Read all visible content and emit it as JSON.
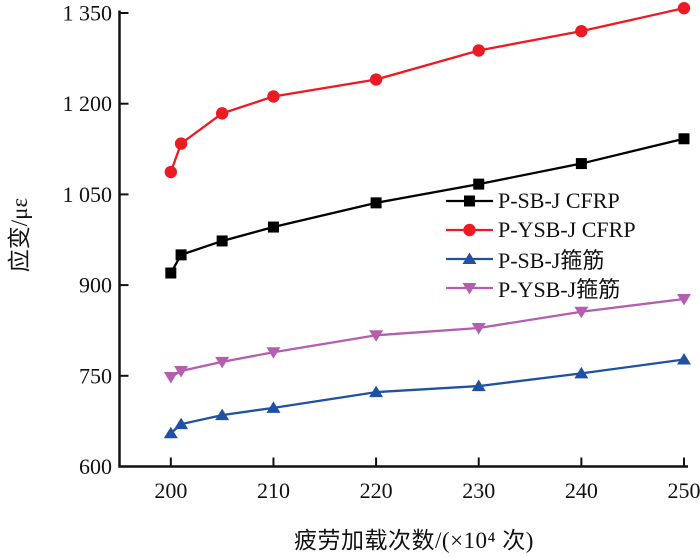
{
  "chart_data": {
    "type": "line",
    "title": "",
    "xlabel": "疲劳加载次数/(×10⁴ 次)",
    "ylabel": "应变/με",
    "x": [
      200,
      201,
      205,
      210,
      220,
      230,
      240,
      250
    ],
    "xlim": [
      195,
      250
    ],
    "ylim": [
      600,
      1350
    ],
    "grid": false,
    "legend_position": "middle-right",
    "xticks": [
      {
        "value": 200,
        "label": "200"
      },
      {
        "value": 210,
        "label": "210"
      },
      {
        "value": 220,
        "label": "220"
      },
      {
        "value": 230,
        "label": "230"
      },
      {
        "value": 240,
        "label": "240"
      },
      {
        "value": 250,
        "label": "250"
      }
    ],
    "yticks": [
      {
        "value": 600,
        "label": "600"
      },
      {
        "value": 750,
        "label": "750"
      },
      {
        "value": 900,
        "label": "900"
      },
      {
        "value": 1050,
        "label": "1 050"
      },
      {
        "value": 1200,
        "label": "1 200"
      },
      {
        "value": 1350,
        "label": "1 350"
      }
    ],
    "series": [
      {
        "name": "P-SB-J CFRP",
        "color": "#000000",
        "marker": "square",
        "values": [
          920,
          950,
          973,
          996,
          1036,
          1067,
          1101,
          1142
        ]
      },
      {
        "name": "P-YSB-J CFRP",
        "color": "#EC1B23",
        "marker": "circle",
        "values": [
          1087,
          1134,
          1184,
          1212,
          1240,
          1288,
          1320,
          1358
        ]
      },
      {
        "name": "P-SB-J箍筋",
        "color": "#2051A3",
        "marker": "triangle-up",
        "values": [
          655,
          670,
          685,
          697,
          723,
          733,
          754,
          777
        ]
      },
      {
        "name": "P-YSB-J箍筋",
        "color": "#B35EAE",
        "marker": "triangle-down",
        "values": [
          748,
          758,
          773,
          789,
          817,
          829,
          856,
          877
        ]
      }
    ],
    "axis_color": "#111111"
  }
}
